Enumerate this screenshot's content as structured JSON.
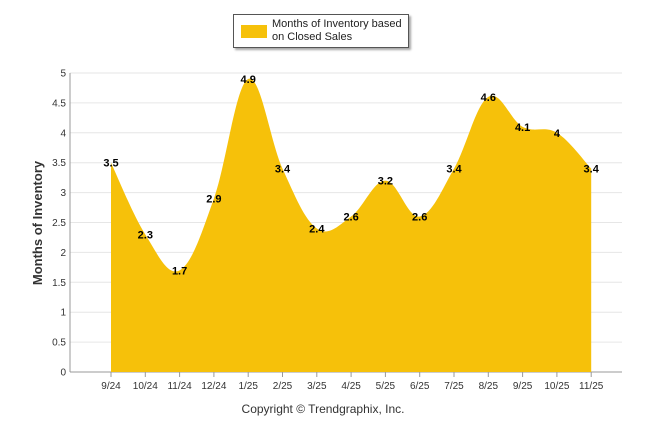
{
  "colors": {
    "series_fill": "#f6c10a",
    "grid": "#e6e6e6",
    "axis": "#999999"
  },
  "legend": {
    "label": "Months of Inventory based on Closed Sales"
  },
  "copyright": "Copyright © Trendgraphix, Inc.",
  "chart_data": {
    "type": "area",
    "title": "",
    "xlabel": "",
    "ylabel": "Months of Inventory",
    "ylim": [
      0,
      5
    ],
    "yticks": [
      "0",
      "0.5",
      "1",
      "1.5",
      "2",
      "2.5",
      "3",
      "3.5",
      "4",
      "4.5",
      "5"
    ],
    "categories": [
      "9/24",
      "10/24",
      "11/24",
      "12/24",
      "1/25",
      "2/25",
      "3/25",
      "4/25",
      "5/25",
      "6/25",
      "7/25",
      "8/25",
      "9/25",
      "10/25",
      "11/25"
    ],
    "series": [
      {
        "name": "Months of Inventory based on Closed Sales",
        "values": [
          3.5,
          2.3,
          1.7,
          2.9,
          4.9,
          3.4,
          2.4,
          2.6,
          3.2,
          2.6,
          3.4,
          4.6,
          4.1,
          4,
          3.4
        ],
        "labels": [
          "3.5",
          "2.3",
          "1.7",
          "2.9",
          "4.9",
          "3.4",
          "2.4",
          "2.6",
          "3.2",
          "2.6",
          "3.4",
          "4.6",
          "4.1",
          "4",
          "3.4"
        ]
      }
    ],
    "legend_position": "top-center",
    "grid": true
  }
}
